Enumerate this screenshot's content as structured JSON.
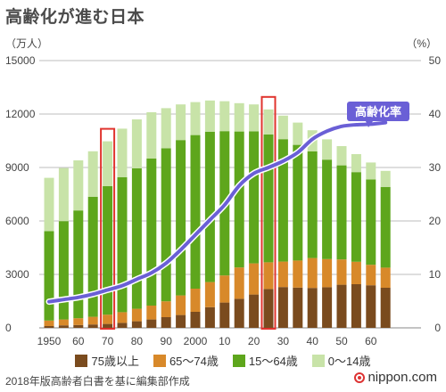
{
  "header": {
    "title": "高齢化が進む日本",
    "unit_left": "（万人）",
    "unit_right": "（%）"
  },
  "footer": {
    "source": "2018年版高齢者白書を基に編集部作成",
    "brand": "nippon.com"
  },
  "colors": {
    "age75plus": "#7a4b1e",
    "age65_74": "#d8892a",
    "age15_64": "#5ea61c",
    "age0_14": "#c8e3a8",
    "ratio_line": "#6a5fd6",
    "highlight": "#e0342e"
  },
  "chart_data": {
    "type": "bar",
    "stacked": true,
    "x": [
      1950,
      1955,
      1960,
      1965,
      1970,
      1975,
      1980,
      1985,
      1990,
      1995,
      2000,
      2005,
      2010,
      2015,
      2020,
      2025,
      2030,
      2035,
      2040,
      2045,
      2050,
      2055,
      2060,
      2065
    ],
    "x_tick_labels": [
      "1950",
      "60",
      "70",
      "80",
      "90",
      "2000",
      "10",
      "20",
      "30",
      "40",
      "50",
      "60"
    ],
    "x_tick_years": [
      1950,
      1960,
      1970,
      1980,
      1990,
      2000,
      2010,
      2020,
      2030,
      2040,
      2050,
      2060
    ],
    "highlight_years": [
      1970,
      2025
    ],
    "y_left": {
      "min": 0,
      "max": 15000,
      "ticks": [
        "0",
        "3000",
        "6000",
        "9000",
        "12000",
        "15000"
      ]
    },
    "y_right": {
      "min": 0,
      "max": 50,
      "ticks": [
        "0",
        "10",
        "20",
        "30",
        "40",
        "50"
      ]
    },
    "series": [
      {
        "name": "75歳以上",
        "values": [
          100,
          140,
          160,
          190,
          220,
          280,
          370,
          470,
          600,
          720,
          900,
          1160,
          1420,
          1630,
          1870,
          2180,
          2290,
          2260,
          2240,
          2280,
          2420,
          2450,
          2390,
          2250
        ]
      },
      {
        "name": "65〜74歳",
        "values": [
          310,
          330,
          380,
          430,
          520,
          600,
          700,
          780,
          890,
          1100,
          1300,
          1410,
          1520,
          1760,
          1750,
          1500,
          1430,
          1520,
          1680,
          1580,
          1420,
          1260,
          1150,
          1130
        ]
      },
      {
        "name": "15〜64歳",
        "values": [
          5020,
          5520,
          6050,
          6740,
          7210,
          7580,
          7880,
          8250,
          8590,
          8720,
          8620,
          8440,
          8100,
          7630,
          7410,
          7170,
          6870,
          6490,
          5980,
          5580,
          5280,
          5030,
          4790,
          4530
        ]
      },
      {
        "name": "0〜14歳",
        "values": [
          2990,
          2980,
          2810,
          2550,
          2520,
          2720,
          2750,
          2600,
          2250,
          2000,
          1850,
          1750,
          1680,
          1590,
          1510,
          1410,
          1320,
          1250,
          1190,
          1140,
          1080,
          1010,
          950,
          900
        ]
      }
    ],
    "line": {
      "name": "高齢化率",
      "values": [
        4.9,
        5.3,
        5.7,
        6.3,
        7.1,
        7.9,
        9.1,
        10.3,
        12.1,
        14.6,
        17.4,
        20.2,
        23.0,
        26.6,
        28.9,
        30.0,
        31.2,
        32.8,
        35.3,
        36.8,
        37.7,
        38.0,
        38.1,
        38.4
      ]
    }
  }
}
